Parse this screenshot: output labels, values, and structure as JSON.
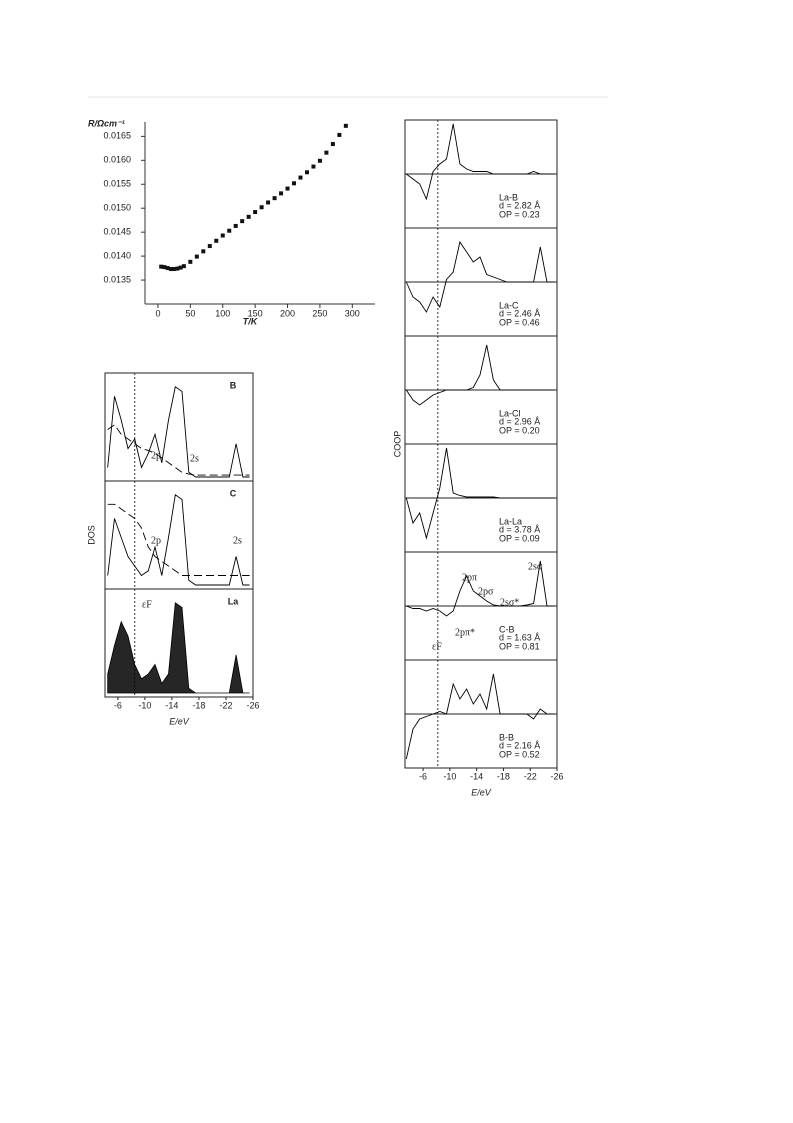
{
  "chart_data": [
    {
      "type": "scatter",
      "y_label": "R/Ωcm⁻¹",
      "x_label": "T/K",
      "x": [
        5,
        10,
        15,
        20,
        25,
        30,
        35,
        40,
        50,
        60,
        70,
        80,
        90,
        100,
        110,
        120,
        130,
        140,
        150,
        160,
        170,
        180,
        190,
        200,
        210,
        220,
        230,
        240,
        250,
        260,
        270,
        280,
        290
      ],
      "values": [
        0.01378,
        0.01377,
        0.01375,
        0.01373,
        0.01373,
        0.01374,
        0.01376,
        0.01379,
        0.01388,
        0.01399,
        0.0141,
        0.01421,
        0.01432,
        0.01443,
        0.01453,
        0.01463,
        0.01473,
        0.01482,
        0.01492,
        0.01502,
        0.01512,
        0.01521,
        0.01531,
        0.01541,
        0.01552,
        0.01564,
        0.01575,
        0.01587,
        0.01599,
        0.01616,
        0.01634,
        0.01653,
        0.01672
      ],
      "color": "#111111",
      "xlim": [
        -20,
        335
      ],
      "ylim": [
        0.013,
        0.0168
      ],
      "xticks": [
        0,
        50,
        100,
        150,
        200,
        250,
        300
      ],
      "yticks": [
        0.0135,
        {
          "value": 0.014,
          "label": "0.0140"
        },
        0.0145,
        {
          "value": 0.015,
          "label": "0.0150"
        },
        0.0155,
        {
          "value": 0.016,
          "label": "0.0160"
        },
        0.0165
      ]
    },
    {
      "type": "line",
      "y_label": "DOS",
      "x_label": "E/eV",
      "x": [
        -4.5,
        -5.5,
        -6.5,
        -7.5,
        -8.5,
        -9.5,
        -10.5,
        -11.5,
        -12.5,
        -13.5,
        -14.5,
        -15.5,
        -16.5,
        -17.5,
        -18.5,
        -19.5,
        -20.5,
        -21.5,
        -22.5,
        -23.5,
        -24.5,
        -25.5
      ],
      "xlim": [
        -4.1,
        -26
      ],
      "xticks": [
        -6,
        -10,
        -14,
        -18,
        -22,
        -26
      ],
      "fermi_level": -8.5,
      "color": "#000000",
      "panels": [
        {
          "label": "B",
          "values": [
            0.1,
            0.85,
            0.6,
            0.3,
            0.4,
            0.1,
            0.25,
            0.45,
            0.15,
            0.6,
            0.95,
            0.9,
            0.05,
            0,
            0,
            0,
            0,
            0,
            0,
            0.35,
            0,
            0
          ],
          "integrated": [
            0.5,
            0.55,
            0.45,
            0.4,
            0.35,
            0.3,
            0.28,
            0.25,
            0.2,
            0.15,
            0.1,
            0.05,
            0.03,
            0.02,
            0.02,
            0.02,
            0.02,
            0.02,
            0.02,
            0.02,
            0.02,
            0.02
          ],
          "annotations": [
            "2p",
            "2s"
          ]
        },
        {
          "label": "C",
          "values": [
            0.1,
            0.7,
            0.5,
            0.3,
            0.2,
            0.1,
            0.15,
            0.4,
            0.1,
            0.5,
            0.95,
            0.9,
            0.05,
            0,
            0,
            0,
            0,
            0,
            0,
            0.3,
            0,
            0
          ],
          "integrated": [
            0.85,
            0.85,
            0.8,
            0.75,
            0.7,
            0.6,
            0.4,
            0.3,
            0.25,
            0.2,
            0.15,
            0.1,
            0.1,
            0.1,
            0.1,
            0.1,
            0.1,
            0.1,
            0.1,
            0.1,
            0.1,
            0.1
          ],
          "annotations": [
            "2p",
            "2s"
          ]
        },
        {
          "label": "La",
          "values": [
            0.2,
            0.5,
            0.75,
            0.6,
            0.3,
            0.15,
            0.2,
            0.3,
            0.1,
            0.2,
            0.95,
            0.9,
            0.05,
            0,
            0,
            0,
            0,
            0,
            0,
            0.4,
            0,
            0
          ],
          "filled": true,
          "annotations": [
            "εF"
          ]
        }
      ]
    },
    {
      "type": "line",
      "y_label": "COOP",
      "x_label": "E/eV",
      "x": [
        -3.5,
        -4.5,
        -5.5,
        -6.5,
        -7.5,
        -8.5,
        -9.5,
        -10.5,
        -11.5,
        -12.5,
        -13.5,
        -14.5,
        -15.5,
        -16.5,
        -17.5,
        -18.5,
        -19.5,
        -20.5,
        -21.5,
        -22.5,
        -23.5,
        -24.5,
        -25.5
      ],
      "xlim": [
        -3.3,
        -26
      ],
      "xticks": [
        -6,
        -10,
        -14,
        -18,
        -22,
        -26
      ],
      "fermi_level": -8.2,
      "color": "#000000",
      "panels": [
        {
          "label": "La-B",
          "d": "d = 2.82 Å",
          "op": "OP = 0.23",
          "values": [
            0,
            -0.1,
            -0.2,
            -0.5,
            0.05,
            0.2,
            0.3,
            1,
            0.2,
            0.1,
            0.05,
            0.05,
            0.05,
            0,
            0,
            0,
            0,
            0,
            0,
            0.05,
            0,
            0,
            0
          ]
        },
        {
          "label": "La-C",
          "d": "d = 2.46 Å",
          "op": "OP = 0.46",
          "values": [
            0,
            -0.3,
            -0.4,
            -0.6,
            -0.3,
            -0.5,
            0.05,
            0.2,
            0.8,
            0.6,
            0.4,
            0.5,
            0.15,
            0.1,
            0.05,
            0,
            0,
            0,
            0,
            0,
            0.7,
            0,
            0
          ]
        },
        {
          "label": "La-Cl",
          "d": "d = 2.96 Å",
          "op": "OP = 0.20",
          "values": [
            0,
            -0.2,
            -0.3,
            -0.2,
            -0.1,
            -0.05,
            0,
            0,
            0,
            0,
            0.05,
            0.3,
            0.9,
            0.2,
            0,
            0,
            0,
            0,
            0,
            0,
            0,
            0,
            0
          ]
        },
        {
          "label": "La-La",
          "d": "d = 3.78 Å",
          "op": "OP = 0.09",
          "values": [
            0,
            -0.5,
            -0.3,
            -0.8,
            -0.3,
            0.2,
            1,
            0.1,
            0.05,
            0.02,
            0.02,
            0.02,
            0.02,
            0.02,
            0,
            0,
            0,
            0,
            0,
            0,
            0,
            0,
            0
          ]
        },
        {
          "label": "C-B",
          "d": "d = 1.63 Å",
          "op": "OP = 0.81",
          "values": [
            0,
            -0.05,
            -0.05,
            -0.1,
            -0.05,
            -0.1,
            -0.2,
            -0.1,
            0.3,
            0.6,
            0.3,
            0.2,
            0.1,
            0.02,
            0,
            0,
            0,
            0,
            0.02,
            0.05,
            0.9,
            0,
            0
          ],
          "annotations": [
            "2pπ",
            "2pσ",
            "2sσ*",
            "2sσ",
            "2pπ*",
            "εF"
          ]
        },
        {
          "label": "B-B",
          "d": "d = 2.16 Å",
          "op": "OP = 0.52",
          "values": [
            -0.9,
            -0.3,
            -0.1,
            -0.05,
            0,
            0.05,
            0,
            0.6,
            0.3,
            0.5,
            0.2,
            0.4,
            0.1,
            0.8,
            0,
            0,
            0,
            0,
            0,
            -0.1,
            0.1,
            0,
            0
          ]
        }
      ]
    }
  ]
}
